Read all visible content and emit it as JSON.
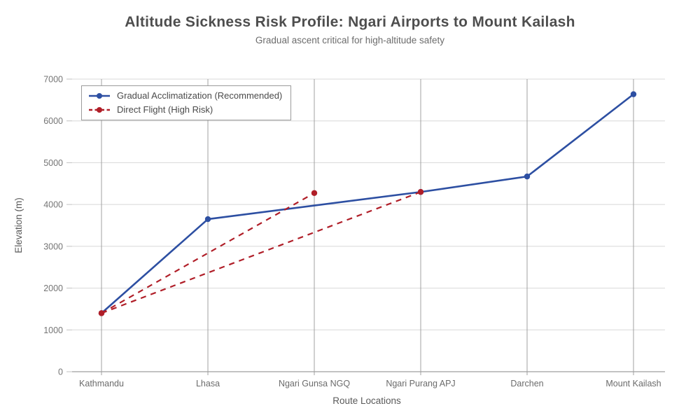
{
  "chart_data": {
    "type": "line",
    "title": "Altitude Sickness Risk Profile: Ngari Airports to Mount Kailash",
    "subtitle": "Gradual ascent critical for high-altitude safety",
    "xlabel": "Route Locations",
    "ylabel": "Elevation (m)",
    "categories": [
      "Kathmandu",
      "Lhasa",
      "Ngari Gunsa NGQ",
      "Ngari Purang APJ",
      "Darchen",
      "Mount Kailash"
    ],
    "ylim": [
      0,
      7000
    ],
    "ytick_step": 1000,
    "ytick_labels": [
      "0",
      "1000",
      "2000",
      "3000",
      "4000",
      "5000",
      "6000",
      "7000"
    ],
    "grid": true,
    "legend_position": "top-left-inside",
    "palette": {
      "horizontal_gridline": "#d8d8d8",
      "vertical_gridline": "#a0a0a0",
      "axis_line": "#9f9f9f",
      "title_text": "#4e4e4e",
      "tick_text": "#6f6f6f"
    },
    "series": [
      {
        "name": "Gradual Acclimatization (Recommended)",
        "color": "#2d4fa2",
        "line_style": "solid",
        "marker": "circle",
        "values": [
          1400,
          3650,
          null,
          4300,
          4670,
          6638
        ],
        "note": "line passes Ngari Gunsa NGQ at ~4000 m with no marker"
      },
      {
        "name": "Direct Flight (High Risk)",
        "color": "#b01e28",
        "line_style": "dashed",
        "marker": "circle",
        "segments": [
          {
            "from": [
              "Kathmandu",
              1400
            ],
            "to": [
              "Ngari Gunsa NGQ",
              4274
            ]
          },
          {
            "from": [
              "Kathmandu",
              1400
            ],
            "to": [
              "Ngari Purang APJ",
              4300
            ]
          }
        ]
      }
    ]
  }
}
